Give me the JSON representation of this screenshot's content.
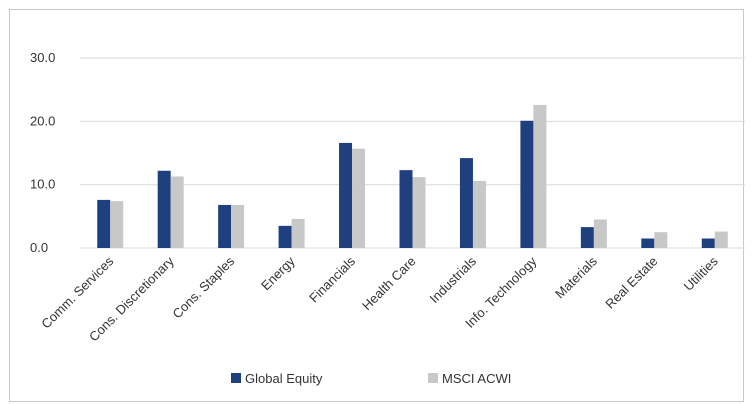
{
  "chart_data": {
    "type": "bar",
    "title": "",
    "xlabel": "",
    "ylabel": "",
    "ylim": [
      0,
      30
    ],
    "yticks": [
      "0.0",
      "10.0",
      "20.0",
      "30.0"
    ],
    "categories": [
      "Comm. Services",
      "Cons. Discretionary",
      "Cons. Staples",
      "Energy",
      "Financials",
      "Health Care",
      "Industrials",
      "Info. Technology",
      "Materials",
      "Real Estate",
      "Utilities"
    ],
    "series": [
      {
        "name": "Global Equity",
        "color": "#1f3f7f",
        "values": [
          7.6,
          12.2,
          6.8,
          3.5,
          16.6,
          12.3,
          14.2,
          20.1,
          3.3,
          1.5,
          1.5
        ]
      },
      {
        "name": "MSCI ACWI",
        "color": "#c8c8c8",
        "values": [
          7.4,
          11.3,
          6.8,
          4.6,
          15.7,
          11.2,
          10.6,
          22.6,
          4.5,
          2.5,
          2.6
        ]
      }
    ],
    "grid": true,
    "legend": "bottom"
  }
}
